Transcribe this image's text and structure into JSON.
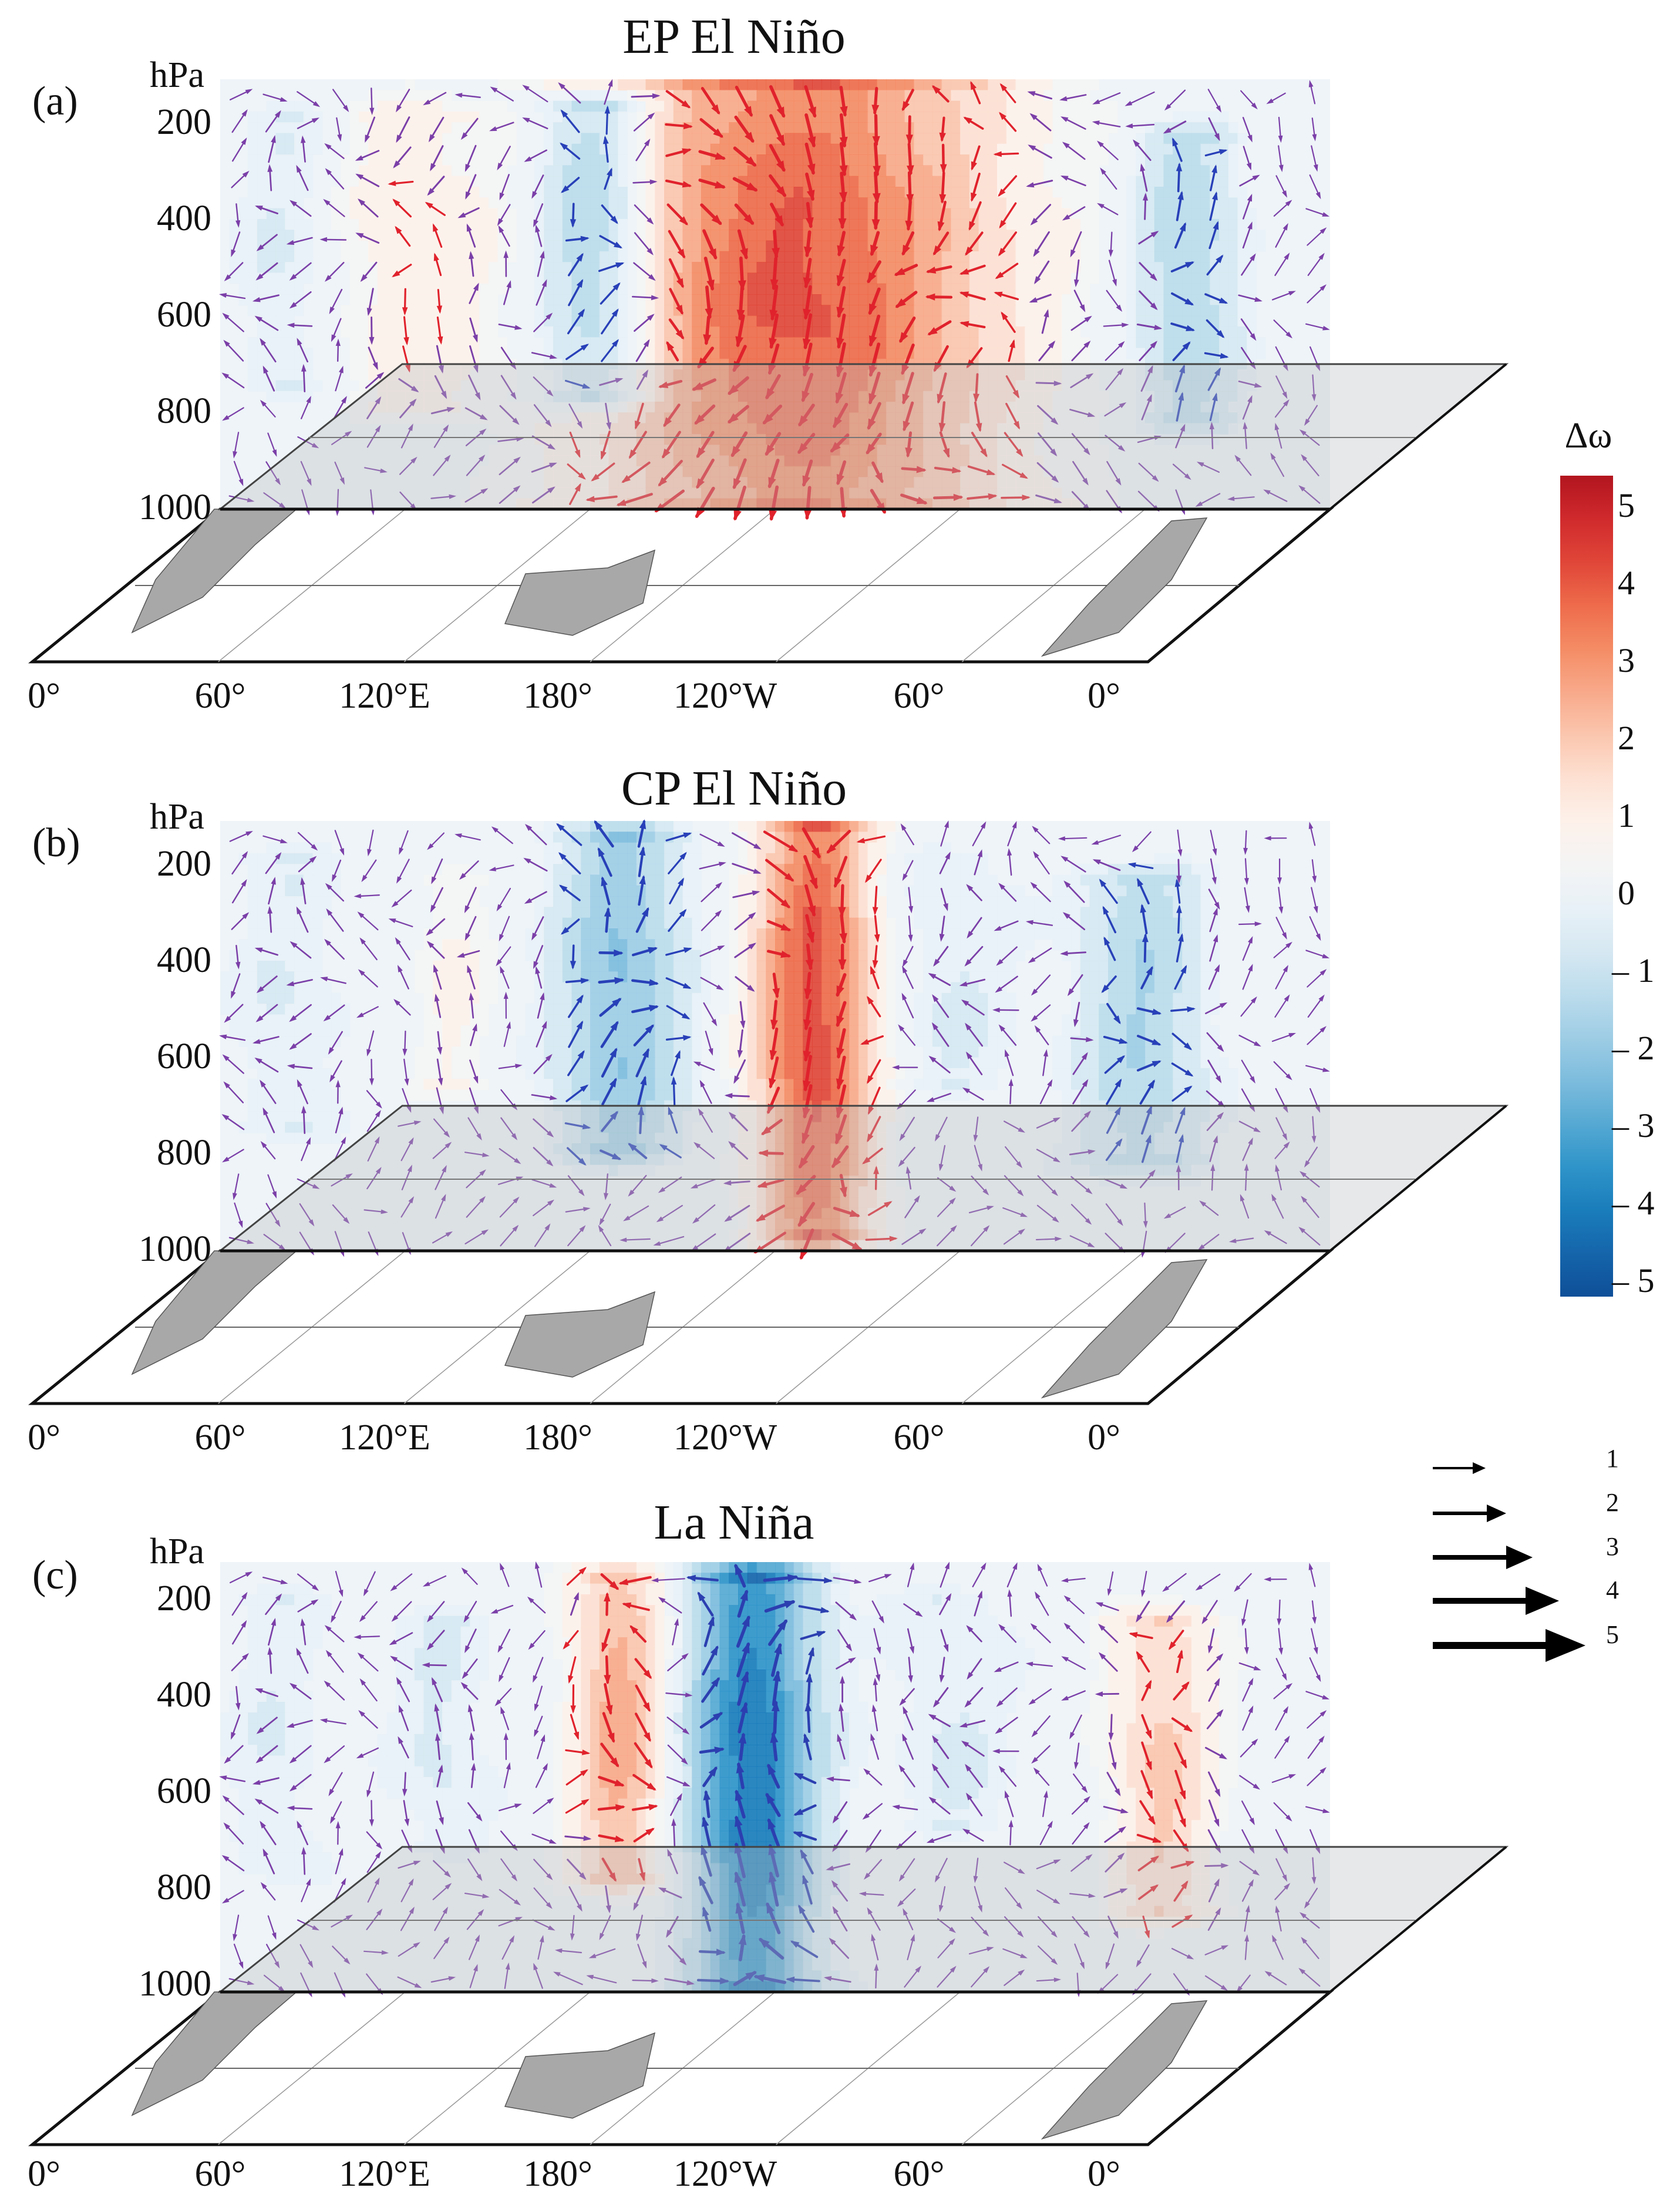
{
  "figure": {
    "colorbar": {
      "title": "Δω",
      "tick_labels": [
        "5",
        "4",
        "3",
        "2",
        "1",
        "0",
        "– 1",
        "– 2",
        "– 3",
        "– 4",
        "– 5"
      ],
      "range": [
        -5,
        5
      ],
      "colors_high_to_low": [
        "#b2151f",
        "#d02a2d",
        "#e04638",
        "#ee6b4b",
        "#f48c65",
        "#f8a98a",
        "#fbc6ae",
        "#fde0d2",
        "#fdf1ea",
        "#f4f4f4",
        "#e8f1f7",
        "#d6e8f2",
        "#bcdcec",
        "#9ecde5",
        "#7dbcdd",
        "#56a9d3",
        "#2f94c9",
        "#1a7dbb",
        "#1565ab",
        "#0e4f98"
      ]
    },
    "vector_reference": {
      "values": [
        "1",
        "2",
        "3",
        "4",
        "5"
      ]
    },
    "y_axis": {
      "unit": "hPa",
      "ticks": [
        "200",
        "400",
        "600",
        "800",
        "1000"
      ]
    },
    "x_axis": {
      "ticks": [
        "0°",
        "60°",
        "120°E",
        "180°",
        "120°W",
        "60°",
        "0°"
      ]
    },
    "panels": [
      {
        "label": "(a)",
        "title": "EP El Niño",
        "vector_color": "purple-blue",
        "features": [
          {
            "lon_frac": 0.52,
            "width": 0.19,
            "amp": 3.8,
            "top": 0.02,
            "bottom": 0.97
          },
          {
            "lon_frac": 0.34,
            "width": 0.06,
            "amp": -2.6,
            "top": 0.08,
            "bottom": 0.72
          },
          {
            "lon_frac": 0.17,
            "width": 0.08,
            "amp": 0.8,
            "top": 0.1,
            "bottom": 0.75
          },
          {
            "lon_frac": 0.87,
            "width": 0.05,
            "amp": -1.6,
            "top": 0.15,
            "bottom": 0.78
          },
          {
            "lon_frac": 0.06,
            "width": 0.05,
            "amp": -0.6,
            "top": 0.1,
            "bottom": 0.7
          }
        ]
      },
      {
        "label": "(b)",
        "title": "CP El Niño",
        "vector_color": "purple-blue",
        "features": [
          {
            "lon_frac": 0.535,
            "width": 0.055,
            "amp": 4.0,
            "top": 0.02,
            "bottom": 0.95
          },
          {
            "lon_frac": 0.36,
            "width": 0.06,
            "amp": -2.2,
            "top": 0.05,
            "bottom": 0.75
          },
          {
            "lon_frac": 0.21,
            "width": 0.04,
            "amp": 0.6,
            "top": 0.15,
            "bottom": 0.6
          },
          {
            "lon_frac": 0.83,
            "width": 0.06,
            "amp": -1.6,
            "top": 0.15,
            "bottom": 0.78
          },
          {
            "lon_frac": 0.06,
            "width": 0.06,
            "amp": -0.5,
            "top": 0.1,
            "bottom": 0.7
          },
          {
            "lon_frac": 0.66,
            "width": 0.06,
            "amp": -0.6,
            "top": 0.1,
            "bottom": 0.6
          }
        ]
      },
      {
        "label": "(c)",
        "title": "La Niña",
        "vector_color": "red-purple",
        "features": [
          {
            "lon_frac": 0.48,
            "width": 0.06,
            "amp": -4.2,
            "top": 0.04,
            "bottom": 0.98
          },
          {
            "lon_frac": 0.36,
            "width": 0.045,
            "amp": 2.4,
            "top": 0.05,
            "bottom": 0.72
          },
          {
            "lon_frac": 0.85,
            "width": 0.05,
            "amp": 1.7,
            "top": 0.15,
            "bottom": 0.8
          },
          {
            "lon_frac": 0.2,
            "width": 0.05,
            "amp": -0.6,
            "top": 0.15,
            "bottom": 0.65
          },
          {
            "lon_frac": 0.66,
            "width": 0.06,
            "amp": -0.6,
            "top": 0.1,
            "bottom": 0.6
          },
          {
            "lon_frac": 0.05,
            "width": 0.05,
            "amp": -0.5,
            "top": 0.1,
            "bottom": 0.7
          }
        ]
      }
    ]
  }
}
